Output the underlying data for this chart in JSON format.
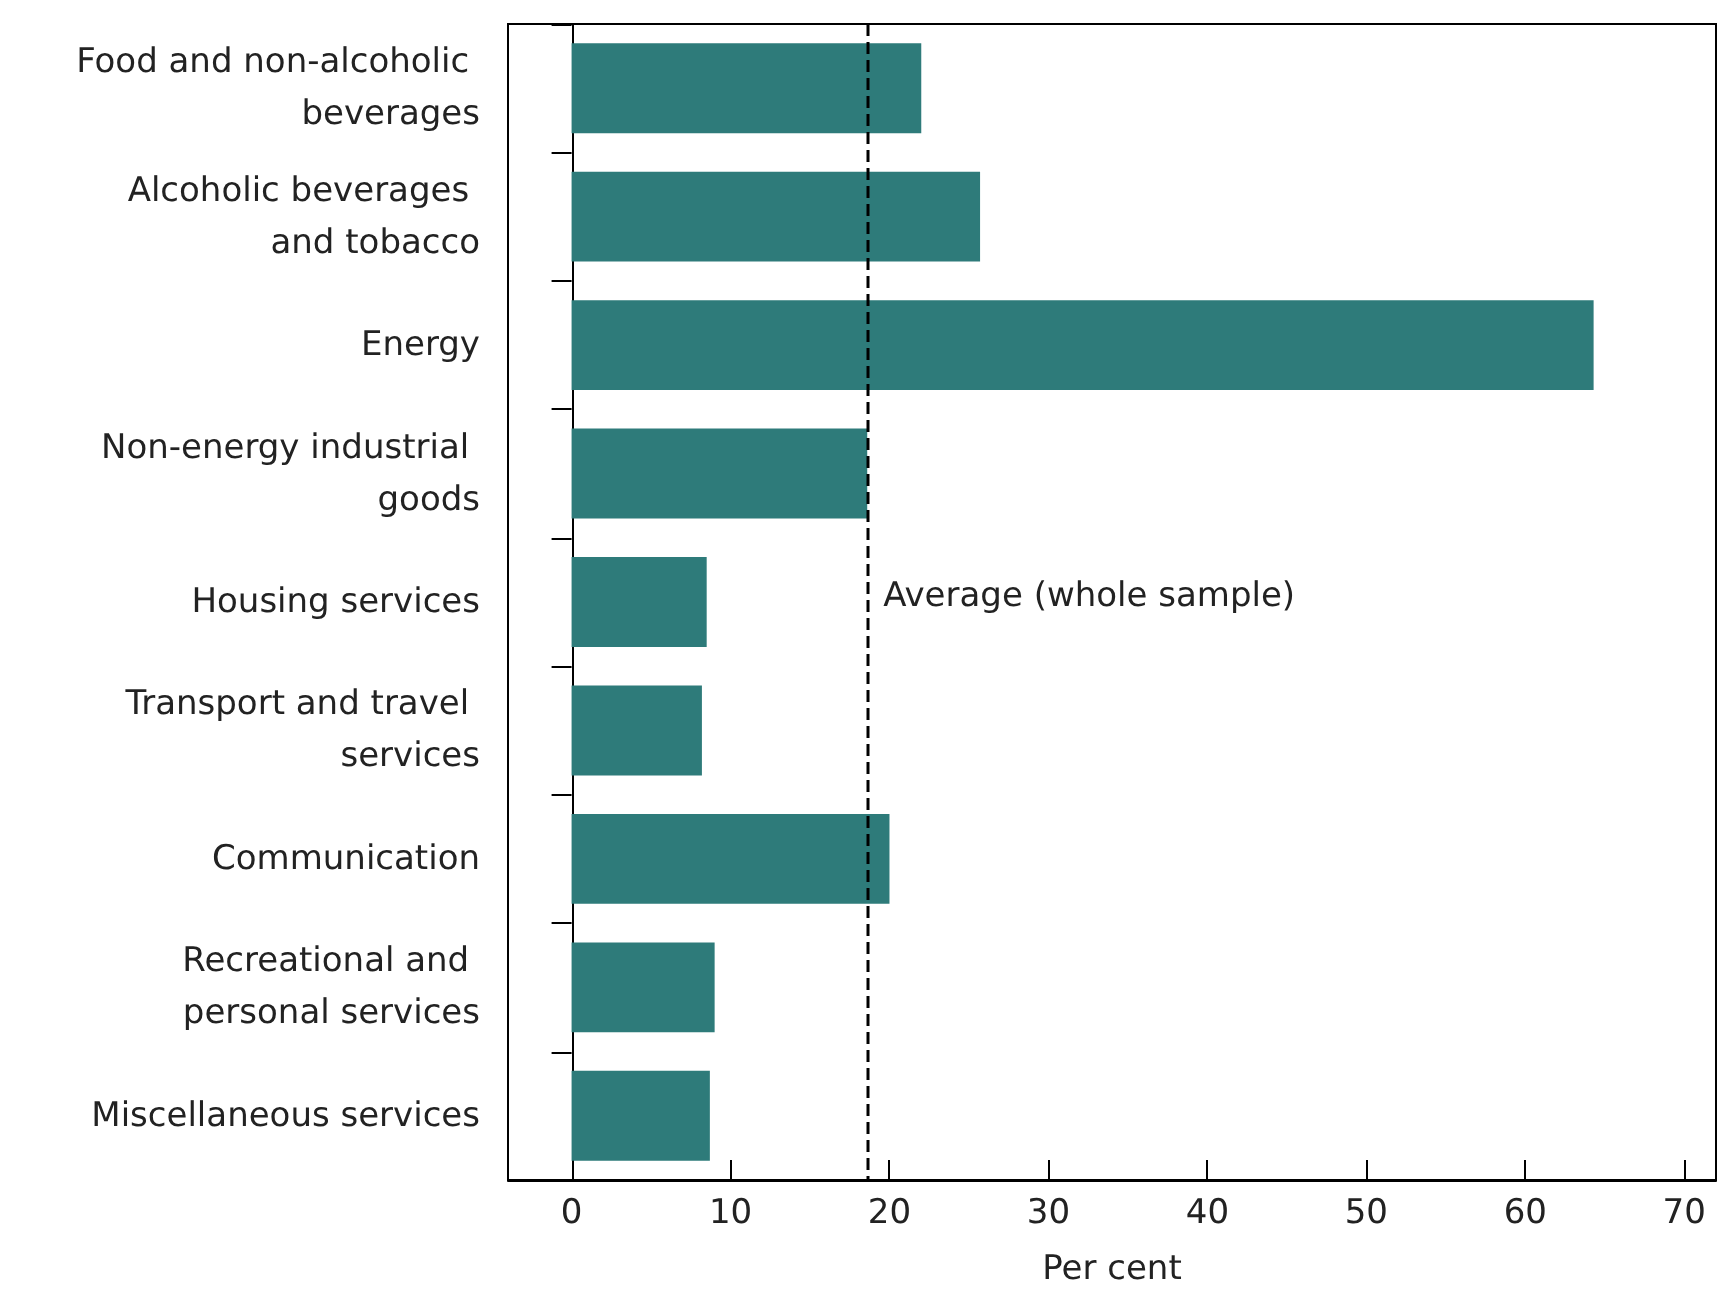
{
  "chart_data": {
    "type": "bar",
    "orientation": "horizontal",
    "xlabel": "Per cent",
    "categories": [
      "Food and non-alcoholic beverages",
      "Alcoholic beverages and tobacco",
      "Energy",
      "Non-energy industrial goods",
      "Housing services",
      "Transport and travel services",
      "Communication",
      "Recreational and personal services",
      "Miscellaneous services"
    ],
    "values": [
      22.0,
      25.7,
      64.3,
      18.6,
      8.5,
      8.2,
      20.0,
      9.0,
      8.7
    ],
    "color": "#2e7b7a",
    "xlim": [
      -4,
      72
    ],
    "xticks": [
      0,
      10,
      20,
      30,
      40,
      50,
      60,
      70
    ],
    "ref_lines": [
      {
        "axis": "x",
        "value": 18.6,
        "label": "Average (whole sample)",
        "color": "#000000",
        "line_style": "dashed"
      }
    ],
    "data_labels": false
  }
}
